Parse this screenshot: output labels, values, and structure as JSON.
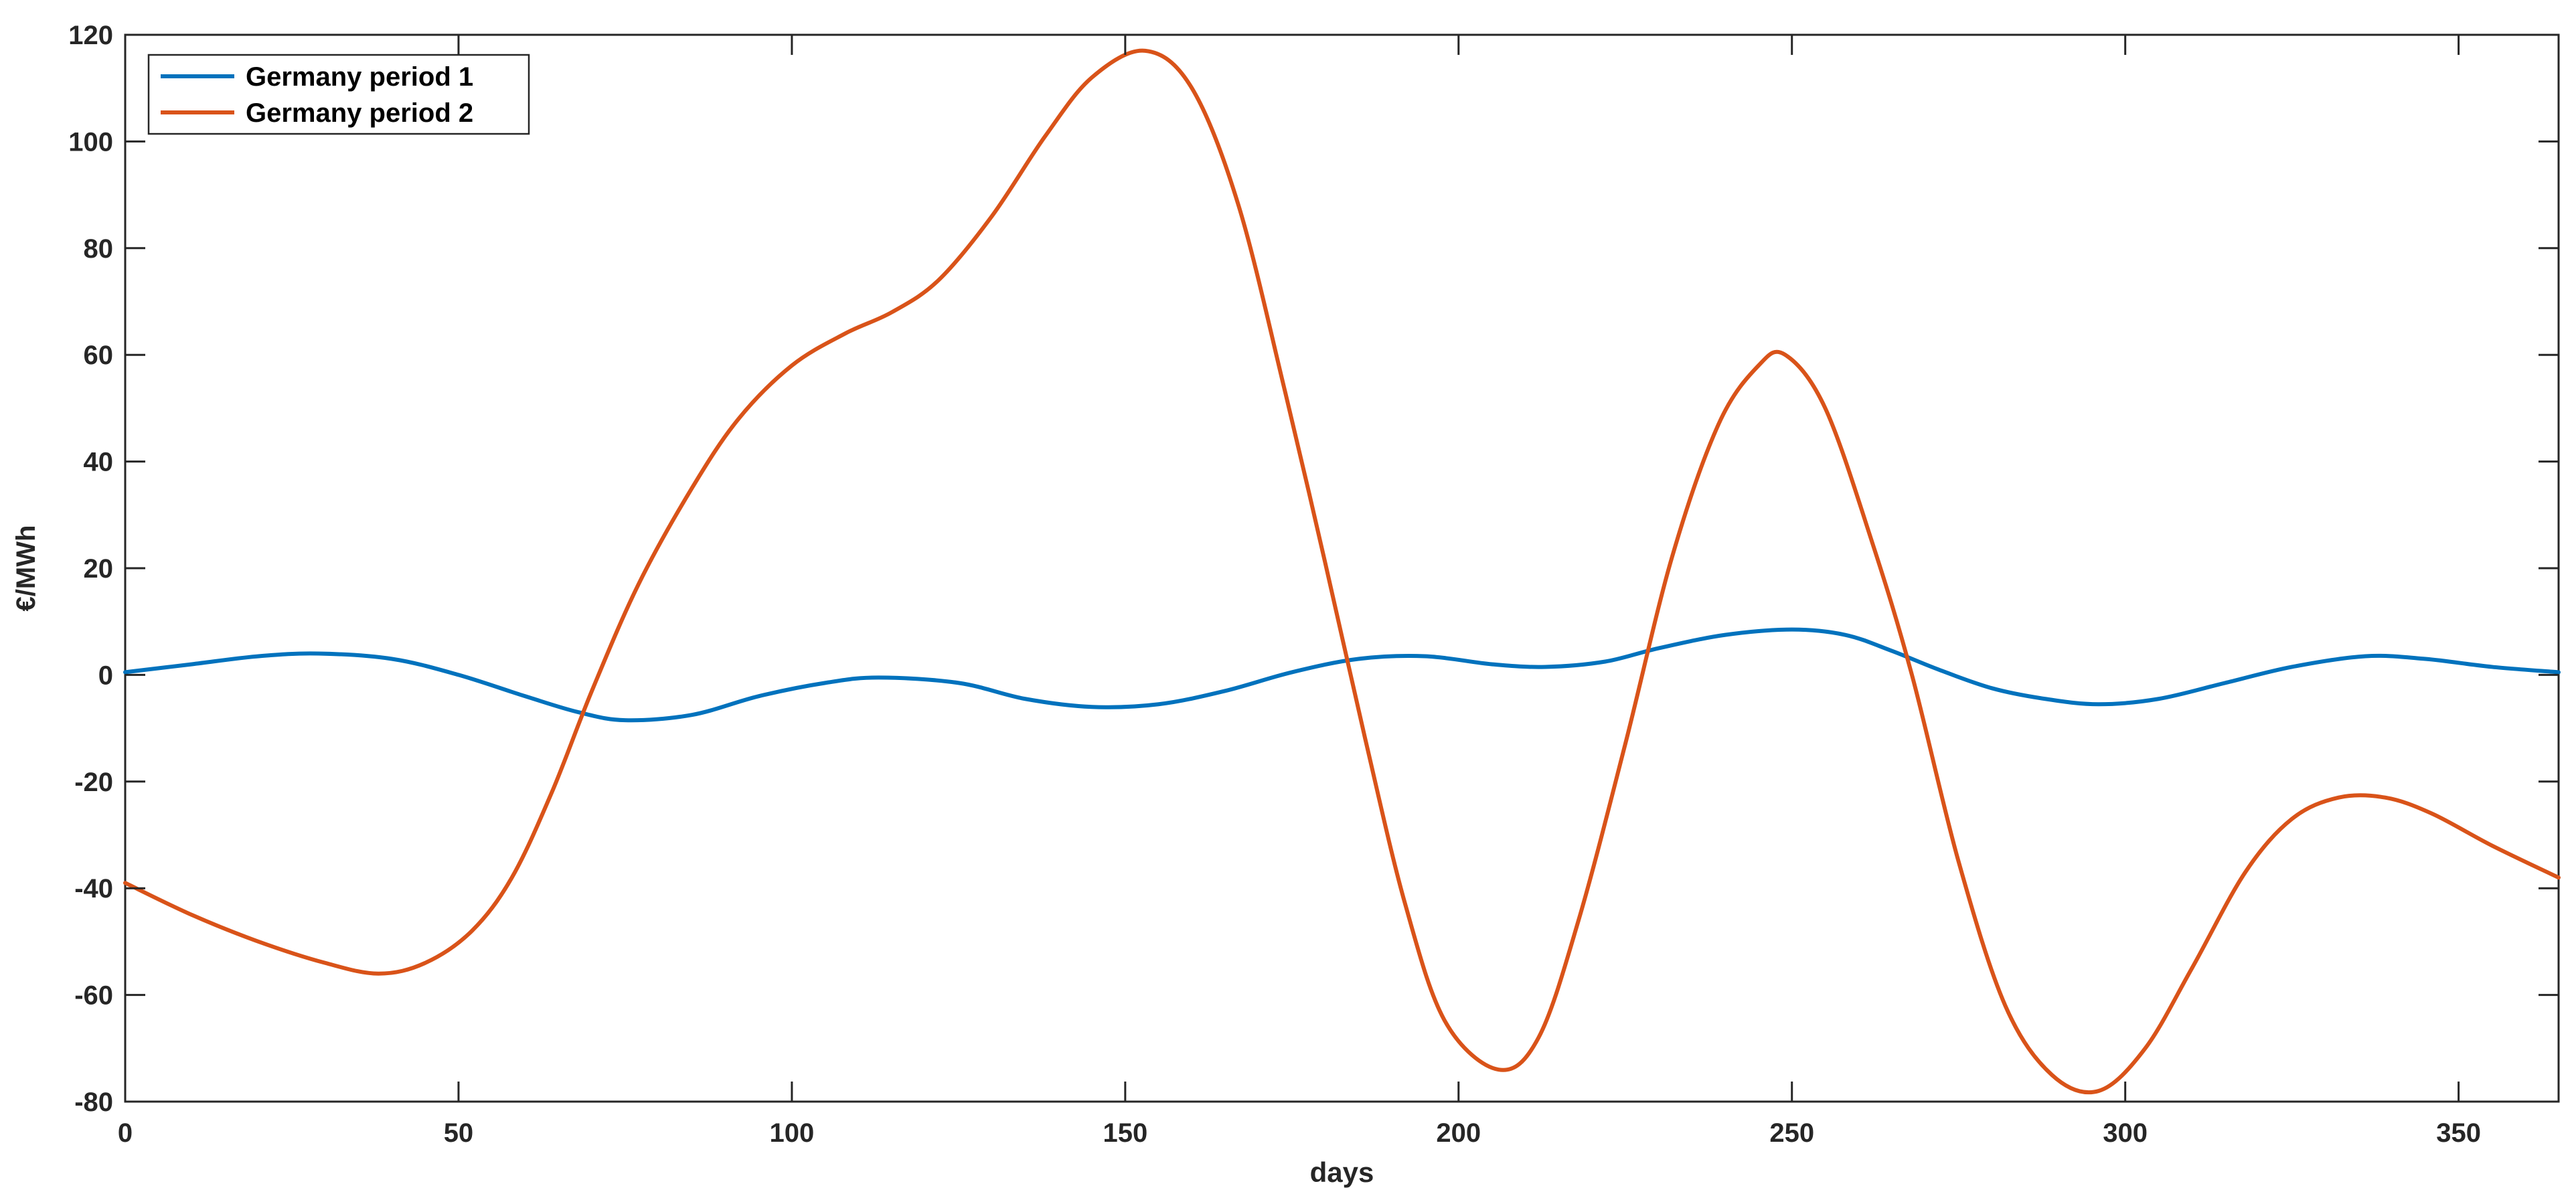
{
  "chart_data": {
    "type": "line",
    "title": "",
    "xlabel": "days",
    "ylabel": "€/MWh",
    "xlim": [
      0,
      365
    ],
    "ylim": [
      -80,
      120
    ],
    "xticks": [
      0,
      50,
      100,
      150,
      200,
      250,
      300,
      350
    ],
    "yticks": [
      -80,
      -60,
      -40,
      -20,
      0,
      20,
      40,
      60,
      80,
      100,
      120
    ],
    "grid": false,
    "legend": "top-left",
    "series": [
      {
        "name": "Germany period 1",
        "color": "#0072BD",
        "x": [
          0,
          10,
          20,
          29,
          40,
          50,
          60,
          68,
          75,
          85,
          95,
          105,
          113,
          125,
          135,
          145,
          155,
          165,
          175,
          185,
          195,
          205,
          213,
          222,
          230,
          240,
          250,
          258,
          265,
          272,
          280,
          288,
          296,
          305,
          315,
          325,
          336,
          345,
          355,
          365
        ],
        "y": [
          0.5,
          2,
          3.5,
          4,
          3,
          0,
          -4,
          -7,
          -8.5,
          -7.5,
          -4,
          -1.5,
          -0.5,
          -1.5,
          -4.5,
          -6,
          -5.5,
          -3,
          0.5,
          3,
          3.5,
          2,
          1.5,
          2.5,
          5,
          7.5,
          8.5,
          7.5,
          4.5,
          1,
          -2.5,
          -4.5,
          -5.5,
          -4.5,
          -1.5,
          1.5,
          3.5,
          3,
          1.5,
          0.5
        ]
      },
      {
        "name": "Germany period 2",
        "color": "#D95319",
        "x": [
          0,
          10,
          20,
          30,
          38,
          45,
          52,
          58,
          64,
          70,
          77,
          85,
          92,
          100,
          108,
          115,
          122,
          130,
          138,
          145,
          153,
          160,
          167,
          174,
          180,
          186,
          192,
          198,
          206,
          212,
          218,
          225,
          232,
          239,
          245,
          249,
          255,
          262,
          268,
          275,
          282,
          289,
          296,
          303,
          310,
          318,
          325,
          332,
          339,
          346,
          355,
          365
        ],
        "y": [
          -39,
          -45,
          -50,
          -54,
          -56,
          -54,
          -48,
          -38,
          -22,
          -3,
          17,
          35,
          48,
          58,
          64,
          68,
          74,
          86,
          101,
          112,
          117,
          110,
          88,
          53,
          21,
          -12,
          -43,
          -65,
          -74,
          -68,
          -46,
          -13,
          22,
          47,
          58,
          60,
          50,
          25,
          0,
          -35,
          -62,
          -75,
          -78,
          -70,
          -55,
          -37,
          -27,
          -23,
          -23,
          -26,
          -32,
          -38
        ]
      }
    ]
  }
}
